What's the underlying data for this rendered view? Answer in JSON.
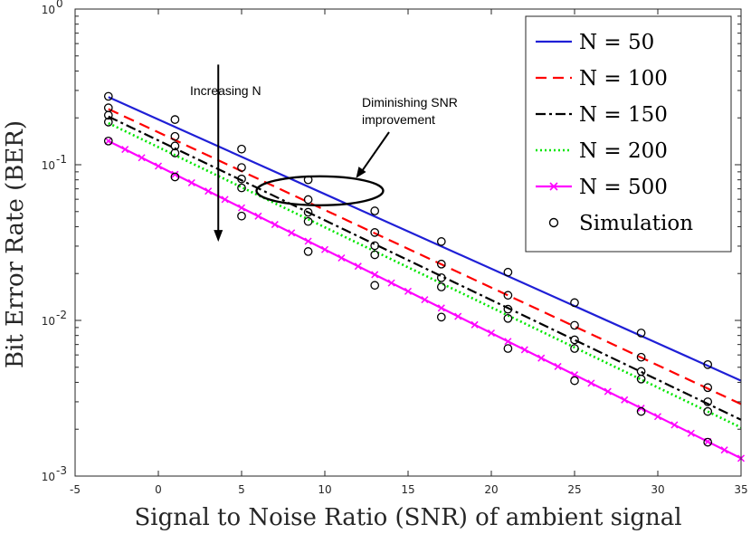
{
  "chart_data": {
    "type": "line",
    "title": "",
    "xlabel": "Signal to Noise Ratio (SNR) of ambient signal",
    "ylabel": "Bit Error Rate (BER)",
    "xlim": [
      -5,
      35
    ],
    "ylim": [
      0.001,
      1
    ],
    "yscale": "log",
    "xticks": [
      -5,
      0,
      5,
      10,
      15,
      20,
      25,
      30,
      35
    ],
    "ytick_labels": [
      {
        "base": "10",
        "exp": "-3",
        "value": 0.001
      },
      {
        "base": "10",
        "exp": "-2",
        "value": 0.01
      },
      {
        "base": "10",
        "exp": "-1",
        "value": 0.1
      },
      {
        "base": "10",
        "exp": "0",
        "value": 1
      }
    ],
    "series": [
      {
        "name": "N = 50",
        "color": "#1f1fd6",
        "dash": "solid",
        "marker": "none",
        "x": [
          -3,
          35
        ],
        "y": [
          0.272,
          0.0041
        ]
      },
      {
        "name": "N = 100",
        "color": "#ff0000",
        "dash": "dashed",
        "marker": "none",
        "x": [
          -3,
          35
        ],
        "y": [
          0.228,
          0.0029
        ]
      },
      {
        "name": "N = 150",
        "color": "#000000",
        "dash": "dashdot",
        "marker": "none",
        "x": [
          -3,
          35
        ],
        "y": [
          0.204,
          0.0023
        ]
      },
      {
        "name": "N = 200",
        "color": "#00e600",
        "dash": "dotted",
        "marker": "none",
        "x": [
          -3,
          35
        ],
        "y": [
          0.185,
          0.00205
        ]
      },
      {
        "name": "N = 500",
        "color": "#ff00ff",
        "dash": "solid",
        "marker": "x",
        "x": [
          -3,
          35
        ],
        "y": [
          0.142,
          0.0013
        ]
      }
    ],
    "simulation": {
      "name": "Simulation",
      "x": [
        -3,
        1,
        5,
        9,
        13,
        17,
        21,
        25,
        29,
        33
      ],
      "groups": [
        [
          0.275,
          0.195,
          0.126,
          0.08,
          0.0505,
          0.0321,
          0.0204,
          0.013,
          0.0083,
          0.0052
        ],
        [
          0.232,
          0.152,
          0.096,
          0.0597,
          0.0367,
          0.023,
          0.0145,
          0.0093,
          0.0058,
          0.0037
        ],
        [
          0.208,
          0.132,
          0.081,
          0.0495,
          0.0302,
          0.0188,
          0.0118,
          0.0075,
          0.0047,
          0.003
        ],
        [
          0.188,
          0.119,
          0.071,
          0.0432,
          0.0264,
          0.0164,
          0.0103,
          0.0066,
          0.0042,
          0.0026
        ],
        [
          0.142,
          0.0835,
          0.0468,
          0.0277,
          0.0168,
          0.0105,
          0.0066,
          0.0041,
          0.0026,
          0.00165
        ]
      ]
    },
    "annotations": [
      {
        "text": "Increasing N",
        "arrow": "down",
        "arrow_x_data": 3.6,
        "arrow_y_from": 0.44,
        "arrow_y_to": 0.032
      },
      {
        "text_lines": [
          "Diminishing SNR",
          "improvement"
        ],
        "ellipse_center_x": 9.7,
        "ellipse_center_y": 0.068
      }
    ],
    "legend_position": "top-right"
  }
}
